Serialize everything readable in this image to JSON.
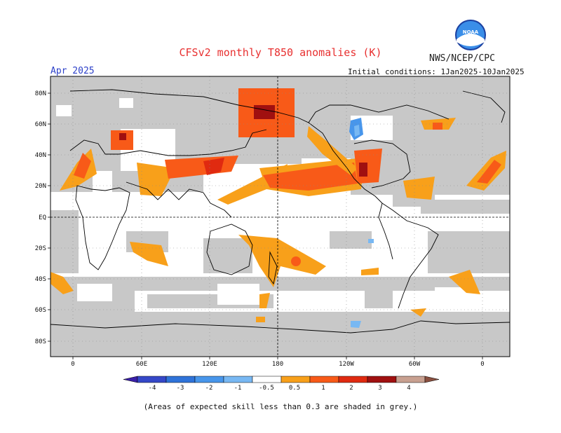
{
  "header": {
    "title": "CFSv2 monthly T850 anomalies (K)",
    "organization": "NWS/NCEP/CPC",
    "month": "Apr 2025",
    "initial_conditions": "Initial conditions: 1Jan2025-10Jan2025",
    "logo_text": "NOAA"
  },
  "axes": {
    "lat_labels": [
      "80N",
      "60N",
      "40N",
      "20N",
      "EQ",
      "20S",
      "40S",
      "60S",
      "80S"
    ],
    "lon_labels": [
      "0",
      "60E",
      "120E",
      "180",
      "120W",
      "60W",
      "0"
    ]
  },
  "colorbar": {
    "labels": [
      "-4",
      "-3",
      "-2",
      "-1",
      "-0.5",
      "0.5",
      "1",
      "2",
      "3",
      "4"
    ],
    "colors": [
      "#3a1fa8",
      "#3548c8",
      "#2f73d9",
      "#4896eb",
      "#78b8f3",
      "#ffffff",
      "#f8a01a",
      "#f85a18",
      "#e02a10",
      "#a01010",
      "#c8a090",
      "#8a5040"
    ]
  },
  "caption": "(Areas of expected skill less than 0.3 are shaded in grey.)",
  "colors": {
    "grey_skill_mask": "#c8c8c8",
    "title_red": "#e83030",
    "month_blue": "#2b3fc8"
  }
}
